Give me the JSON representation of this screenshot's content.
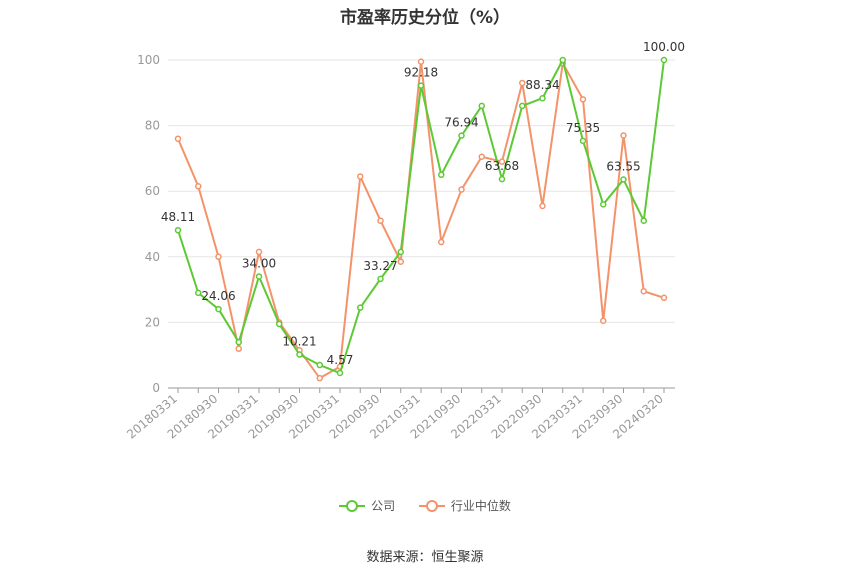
{
  "chart_data": {
    "type": "line",
    "title": "市盈率历史分位（%）",
    "source": "数据来源：恒生聚源",
    "ylim": [
      0,
      100
    ],
    "yticks": [
      "0",
      "20",
      "40",
      "60",
      "80",
      "100"
    ],
    "xtick_labels": [
      "20180331",
      "20180930",
      "20190331",
      "20190930",
      "20200331",
      "20200930",
      "20210331",
      "20210930",
      "20220331",
      "20220930",
      "20230331",
      "20230930",
      "20240320"
    ],
    "x": [
      "20180331",
      "20180630",
      "20180930",
      "20181231",
      "20190331",
      "20190630",
      "20190930",
      "20191231",
      "20200331",
      "20200630",
      "20200930",
      "20201231",
      "20210331",
      "20210630",
      "20210930",
      "20211231",
      "20220331",
      "20220630",
      "20220930",
      "20221231",
      "20230331",
      "20230630",
      "20230930",
      "20231231",
      "20240320"
    ],
    "grid": true,
    "legend_position": "bottom",
    "series": [
      {
        "name": "公司",
        "color": "#5cc935",
        "values": [
          48.11,
          29.0,
          24.06,
          14.0,
          34.0,
          19.5,
          10.21,
          7.0,
          4.57,
          24.5,
          33.27,
          41.5,
          92.18,
          65.0,
          76.94,
          86.0,
          63.68,
          86.0,
          88.34,
          100.0,
          75.35,
          56.0,
          63.55,
          51.0,
          100.0
        ]
      },
      {
        "name": "行业中位数",
        "color": "#f4936a",
        "values": [
          76.0,
          61.5,
          40.0,
          12.0,
          41.5,
          20.0,
          11.5,
          3.0,
          6.5,
          64.5,
          51.0,
          38.5,
          99.5,
          44.5,
          60.5,
          70.5,
          69.0,
          93.0,
          55.5,
          99.0,
          88.0,
          20.5,
          77.0,
          29.5,
          27.5
        ]
      }
    ],
    "data_labels": [
      {
        "index": 0,
        "text": "48.11"
      },
      {
        "index": 2,
        "text": "24.06"
      },
      {
        "index": 4,
        "text": "34.00"
      },
      {
        "index": 6,
        "text": "10.21"
      },
      {
        "index": 8,
        "text": "4.57"
      },
      {
        "index": 10,
        "text": "33.27"
      },
      {
        "index": 12,
        "text": "92.18"
      },
      {
        "index": 14,
        "text": "76.94"
      },
      {
        "index": 16,
        "text": "63.68"
      },
      {
        "index": 18,
        "text": "88.34"
      },
      {
        "index": 20,
        "text": "75.35"
      },
      {
        "index": 22,
        "text": "63.55"
      },
      {
        "index": 24,
        "text": "100.00"
      }
    ]
  }
}
